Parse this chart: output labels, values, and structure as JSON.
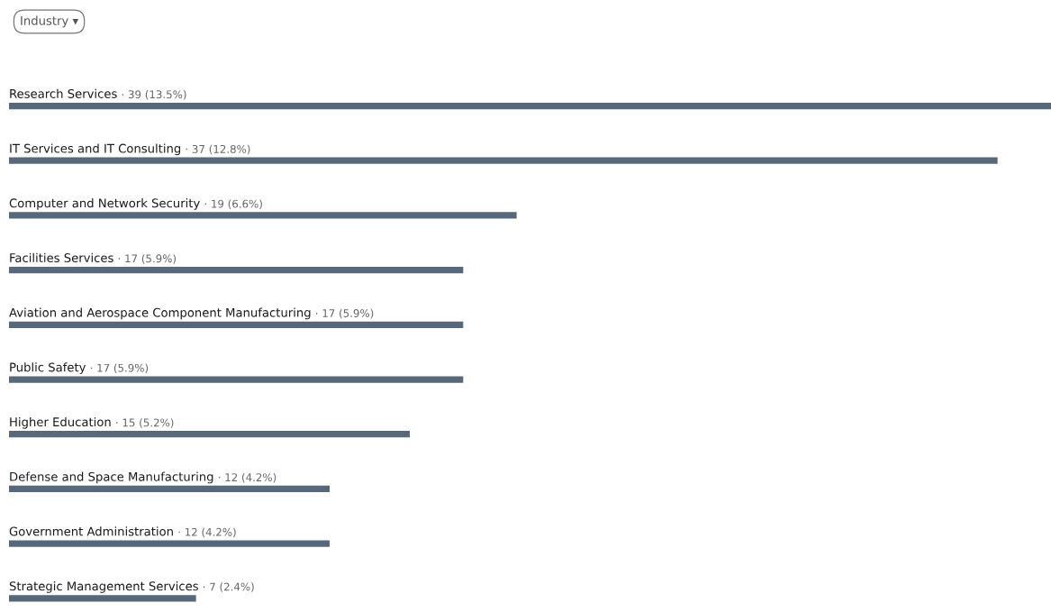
{
  "chart_data": {
    "type": "bar",
    "orientation": "horizontal",
    "title": "Industry ▾",
    "categories": [
      "Research Services",
      "IT Services and IT Consulting",
      "Computer and Network Security",
      "Facilities Services",
      "Aviation and Aerospace Component Manufacturing",
      "Public Safety",
      "Higher Education",
      "Defense and Space Manufacturing",
      "Government Administration",
      "Strategic Management Services"
    ],
    "values": [
      39,
      37,
      19,
      17,
      17,
      17,
      15,
      12,
      12,
      7
    ],
    "value_labels": [
      "· 39 (13.5%)",
      "· 37 (12.8%)",
      "· 19 (6.6%)",
      "· 17 (5.9%)",
      "· 17 (5.9%)",
      "· 17 (5.9%)",
      "· 15 (5.2%)",
      "· 12 (4.2%)",
      "· 12 (4.2%)",
      "· 7 (2.4%)"
    ],
    "color": "#56687a",
    "tick_labels": false
  }
}
